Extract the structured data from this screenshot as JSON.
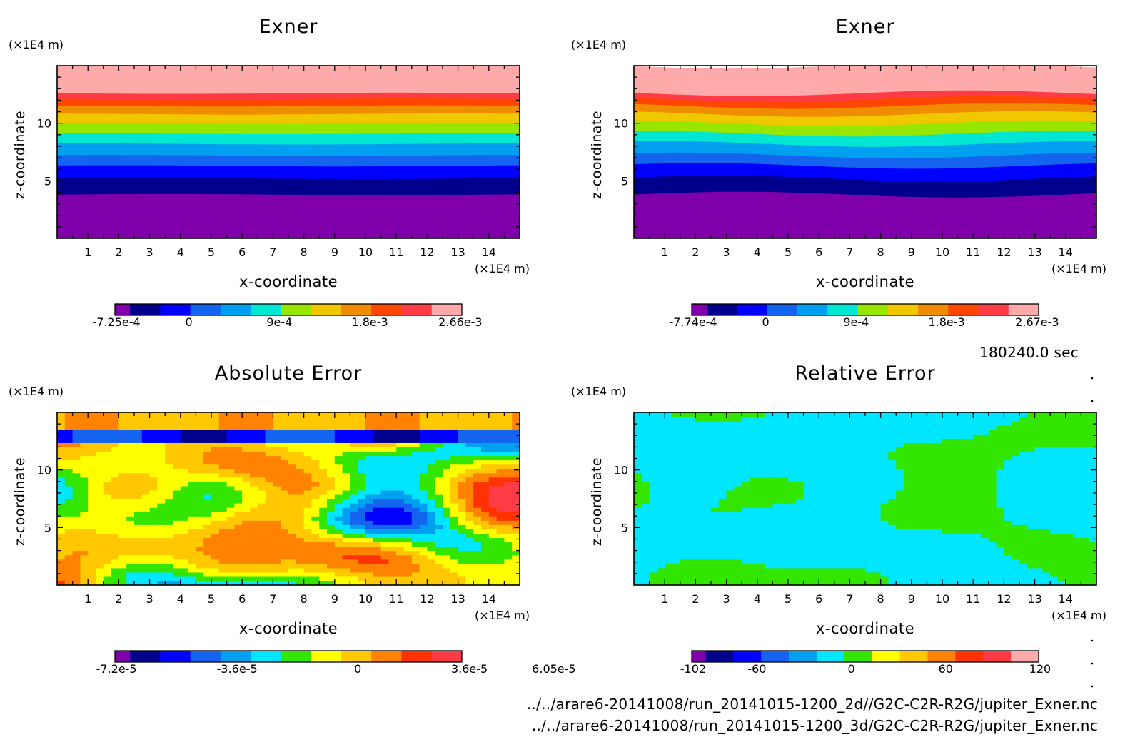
{
  "footer": {
    "time_label": "180240.0 sec",
    "path_2d": "../../arare6-20141008/run_20141015-1200_2d//G2C-C2R-R2G/jupiter_Exner.nc",
    "path_3d": "../../arare6-20141008/run_20141015-1200_3d/G2C-C2R-R2G/jupiter_Exner.nc"
  },
  "chart_data": [
    {
      "type": "heatmap",
      "title": "Exner",
      "xlabel": "x-coordinate",
      "ylabel": "z-coordinate",
      "x_unit": "(×1E4 m)",
      "y_unit": "(×1E4 m)",
      "xlim": [
        0,
        15
      ],
      "ylim": [
        0,
        15
      ],
      "x_ticks": [
        1,
        2,
        3,
        4,
        5,
        6,
        7,
        8,
        9,
        10,
        11,
        12,
        13,
        14
      ],
      "y_ticks": [
        5,
        10
      ],
      "colorbar": {
        "colors": [
          "#7f00aa",
          "#00008c",
          "#0000ff",
          "#1464f0",
          "#00a0f0",
          "#00e6d2",
          "#96e600",
          "#f0c800",
          "#f08c00",
          "#ff4600",
          "#ff3c46",
          "#ffaaaa"
        ],
        "labels": [
          "-7.25e-4",
          "0",
          "9e-4",
          "1.8e-3",
          "2.66e-3"
        ],
        "label_positions": [
          0,
          2.4,
          5.4,
          8.4,
          11.4
        ]
      },
      "field": "layered",
      "bands_z": [
        3.8,
        5.2,
        6.3,
        7.2,
        8.2,
        9.1,
        10.0,
        10.8,
        11.5,
        12.1,
        12.6,
        15
      ],
      "band_undulation": 0.05
    },
    {
      "type": "heatmap",
      "title": "Exner",
      "xlabel": "x-coordinate",
      "ylabel": "z-coordinate",
      "x_unit": "(×1E4 m)",
      "y_unit": "(×1E4 m)",
      "xlim": [
        0,
        15
      ],
      "ylim": [
        0,
        15
      ],
      "x_ticks": [
        1,
        2,
        3,
        4,
        5,
        6,
        7,
        8,
        9,
        10,
        11,
        12,
        13,
        14
      ],
      "y_ticks": [
        5,
        10
      ],
      "colorbar": {
        "colors": [
          "#7f00aa",
          "#00008c",
          "#0000ff",
          "#1464f0",
          "#00a0f0",
          "#00e6d2",
          "#96e600",
          "#f0c800",
          "#f08c00",
          "#ff4600",
          "#ff3c46",
          "#ffaaaa"
        ],
        "labels": [
          "-7.74e-4",
          "0",
          "9e-4",
          "1.8e-3",
          "2.67e-3"
        ],
        "label_positions": [
          0,
          2.4,
          5.4,
          8.4,
          11.4
        ]
      },
      "field": "layered",
      "bands_z": [
        3.8,
        5.2,
        6.3,
        7.2,
        8.2,
        9.1,
        10.0,
        10.8,
        11.5,
        12.1,
        12.6,
        15
      ],
      "band_undulation": 0.25
    },
    {
      "type": "heatmap",
      "title": "Absolute Error",
      "xlabel": "x-coordinate",
      "ylabel": "z-coordinate",
      "x_unit": "(×1E4 m)",
      "y_unit": "(×1E4 m)",
      "xlim": [
        0,
        15
      ],
      "ylim": [
        0,
        15
      ],
      "x_ticks": [
        1,
        2,
        3,
        4,
        5,
        6,
        7,
        8,
        9,
        10,
        11,
        12,
        13,
        14
      ],
      "y_ticks": [
        5,
        10
      ],
      "colorbar": {
        "colors": [
          "#7f00aa",
          "#00008c",
          "#0000ff",
          "#1464f0",
          "#00a0f0",
          "#00e6ff",
          "#32e600",
          "#ffff00",
          "#ffc800",
          "#ff8200",
          "#ff3200",
          "#ff3c46"
        ],
        "labels": [
          "-7.2e-5",
          "-3.6e-5",
          "0",
          "3.6e-5",
          "6.05e-5"
        ],
        "label_positions": [
          0,
          4,
          8,
          11.7,
          14.5
        ]
      },
      "field": "noisy"
    },
    {
      "type": "heatmap",
      "title": "Relative Error",
      "xlabel": "x-coordinate",
      "ylabel": "z-coordinate",
      "x_unit": "(×1E4 m)",
      "y_unit": "(×1E4 m)",
      "xlim": [
        0,
        15
      ],
      "ylim": [
        0,
        15
      ],
      "x_ticks": [
        1,
        2,
        3,
        4,
        5,
        6,
        7,
        8,
        9,
        10,
        11,
        12,
        13,
        14
      ],
      "y_ticks": [
        5,
        10
      ],
      "colorbar": {
        "colors": [
          "#7f00aa",
          "#00008c",
          "#0000ff",
          "#1464f0",
          "#00a0f0",
          "#00e6ff",
          "#32e600",
          "#ffff00",
          "#ffc800",
          "#ff8200",
          "#ff3200",
          "#ff3c46",
          "#ffaaaa"
        ],
        "labels": [
          "-102",
          "-60",
          "0",
          "60",
          "120"
        ],
        "label_positions": [
          0,
          2.3,
          5.7,
          9.1,
          12.5
        ]
      },
      "field": "two-tone"
    }
  ]
}
